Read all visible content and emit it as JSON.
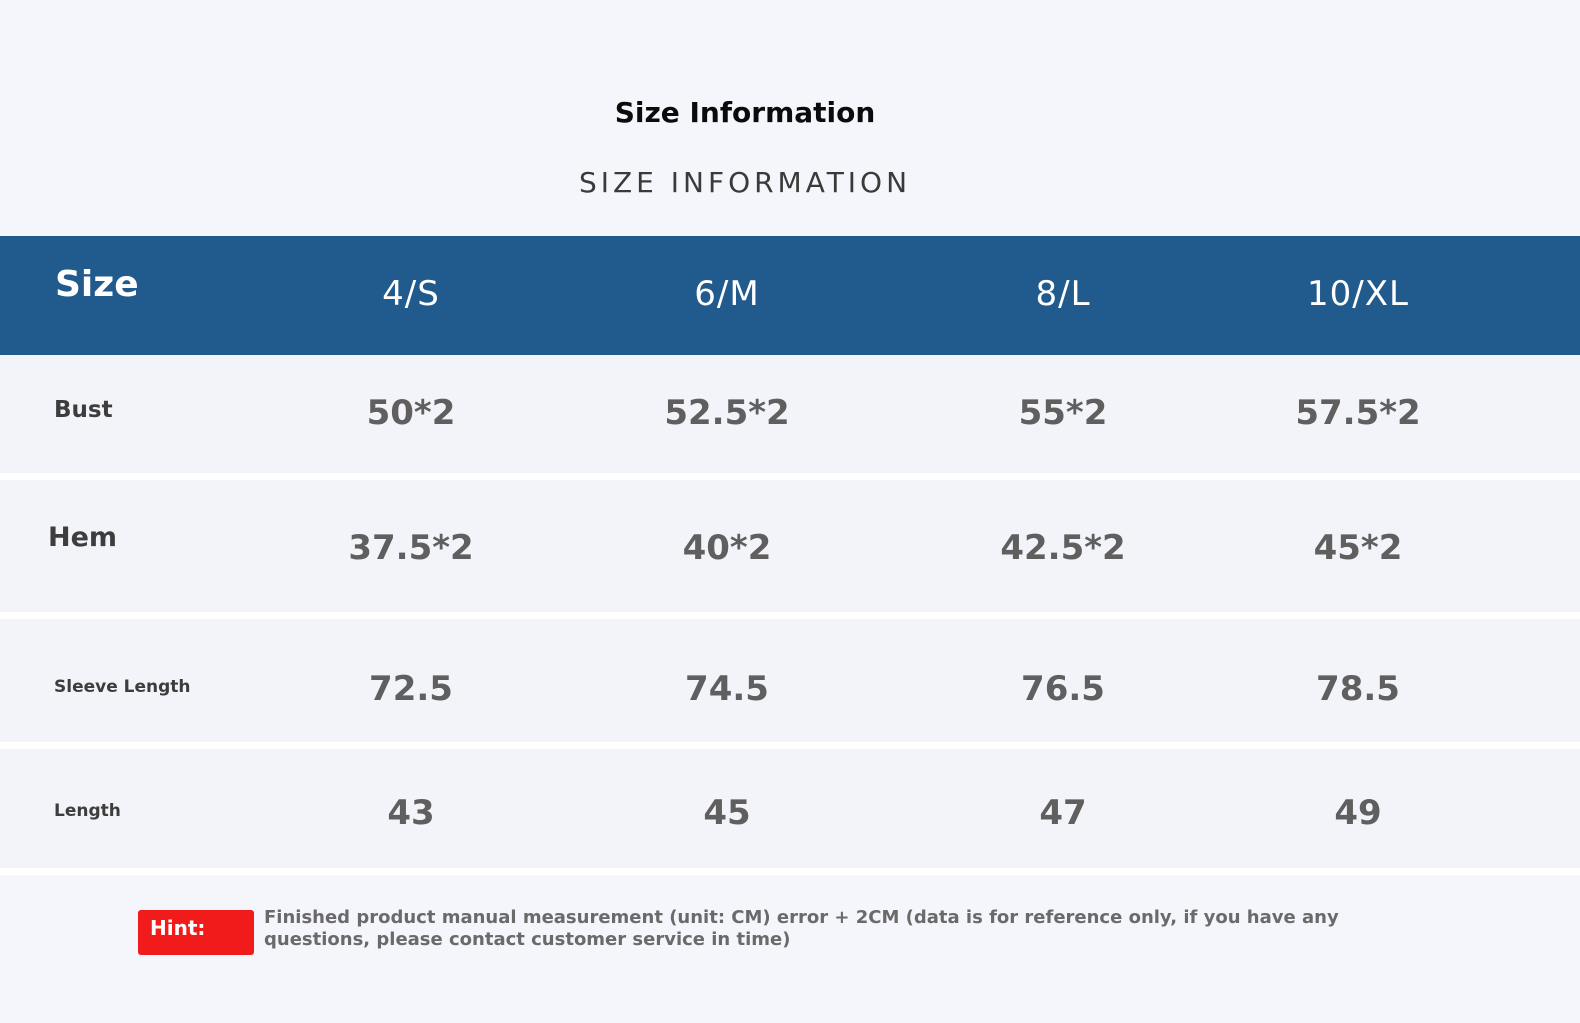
{
  "title": "Size Information",
  "subtitle": "SIZE INFORMATION",
  "table": {
    "header_label": "Size",
    "sizes": [
      "4/S",
      "6/M",
      "8/L",
      "10/XL"
    ],
    "rows": [
      {
        "label": "Bust",
        "values": [
          "50*2",
          "52.5*2",
          "55*2",
          "57.5*2"
        ]
      },
      {
        "label": "Hem",
        "values": [
          "37.5*2",
          "40*2",
          "42.5*2",
          "45*2"
        ]
      },
      {
        "label": "Sleeve Length",
        "values": [
          "72.5",
          "74.5",
          "76.5",
          "78.5"
        ]
      },
      {
        "label": "Length",
        "values": [
          "43",
          "45",
          "47",
          "49"
        ]
      }
    ]
  },
  "hint": {
    "label": "Hint:",
    "text": "Finished product manual measurement (unit: CM) error + 2CM (data is for reference only, if you have any questions, please contact customer service in time)"
  },
  "colors": {
    "header_bg": "#215a8c",
    "hint_bg": "#f21b1b",
    "page_bg": "#f5f6fb"
  }
}
